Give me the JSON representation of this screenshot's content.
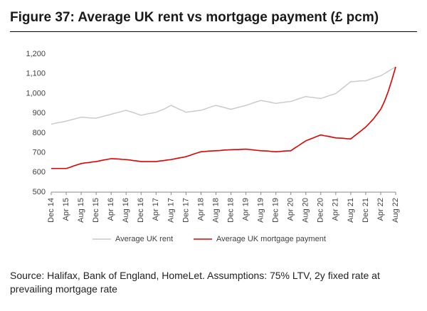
{
  "chart_data": {
    "type": "line",
    "title": "Figure 37: Average UK rent vs mortgage payment (£ pcm)",
    "source": "Source: Halifax, Bank of England, HomeLet. Assumptions: 75% LTV, 2y fixed rate at prevailing mortgage rate",
    "categories": [
      "Dec 14",
      null,
      null,
      null,
      "Apr 15",
      null,
      null,
      null,
      "Aug 15",
      null,
      null,
      null,
      "Dec 15",
      null,
      null,
      null,
      "Apr 16",
      null,
      null,
      null,
      "Aug 16",
      null,
      null,
      null,
      "Dec 16",
      null,
      null,
      null,
      "Apr 17",
      null,
      null,
      null,
      "Aug 17",
      null,
      null,
      null,
      "Dec 17",
      null,
      null,
      null,
      "Apr 18",
      null,
      null,
      null,
      "Aug 18",
      null,
      null,
      null,
      "Dec 18",
      null,
      null,
      null,
      "Apr 19",
      null,
      null,
      null,
      "Aug 19",
      null,
      null,
      null,
      "Dec 19",
      null,
      null,
      null,
      "Apr 20",
      null,
      null,
      null,
      "Aug 20",
      null,
      null,
      null,
      "Dec 20",
      null,
      null,
      null,
      "Apr 21",
      null,
      null,
      null,
      "Aug 21",
      null,
      null,
      null,
      "Dec 21",
      null,
      null,
      null,
      "Apr 22",
      null,
      null,
      null,
      "Aug 22"
    ],
    "series": [
      {
        "name": "Average UK rent",
        "color": "#c8c8c8",
        "values": [
          845,
          849,
          853,
          856,
          860,
          865,
          870,
          875,
          880,
          879,
          877,
          876,
          875,
          880,
          885,
          890,
          895,
          900,
          905,
          910,
          915,
          909,
          903,
          896,
          890,
          894,
          898,
          901,
          905,
          913,
          920,
          930,
          940,
          931,
          922,
          914,
          905,
          908,
          910,
          913,
          915,
          921,
          928,
          934,
          940,
          935,
          930,
          925,
          920,
          925,
          930,
          935,
          940,
          946,
          953,
          959,
          965,
          961,
          958,
          954,
          950,
          953,
          955,
          958,
          960,
          966,
          973,
          979,
          985,
          982,
          980,
          977,
          975,
          981,
          988,
          994,
          1000,
          1015,
          1030,
          1045,
          1060,
          1061,
          1063,
          1064,
          1065,
          1071,
          1078,
          1084,
          1090,
          1101,
          1113,
          1124,
          1135
        ]
      },
      {
        "name": "Average UK mortgage payment",
        "color": "#e00000",
        "values": [
          620,
          620,
          620,
          620,
          620,
          626,
          633,
          639,
          645,
          648,
          650,
          653,
          655,
          659,
          663,
          666,
          670,
          669,
          668,
          666,
          665,
          663,
          660,
          658,
          655,
          655,
          655,
          655,
          655,
          658,
          660,
          663,
          665,
          669,
          673,
          676,
          680,
          686,
          693,
          699,
          705,
          706,
          708,
          709,
          710,
          711,
          713,
          714,
          715,
          716,
          716,
          717,
          718,
          716,
          714,
          712,
          710,
          709,
          708,
          706,
          705,
          706,
          708,
          709,
          710,
          723,
          735,
          748,
          760,
          768,
          775,
          783,
          790,
          786,
          783,
          779,
          775,
          774,
          773,
          771,
          770,
          785,
          800,
          815,
          830,
          850,
          870,
          895,
          920,
          960,
          1010,
          1070,
          1135
        ]
      }
    ],
    "ylim": [
      500,
      1200
    ],
    "yticks": [
      500,
      600,
      700,
      800,
      900,
      {
        "value": 1000,
        "label": "1,000"
      },
      {
        "value": 1100,
        "label": "1,100"
      },
      {
        "value": 1200,
        "label": "1,200"
      }
    ],
    "grid": false,
    "legend": "bottom"
  }
}
